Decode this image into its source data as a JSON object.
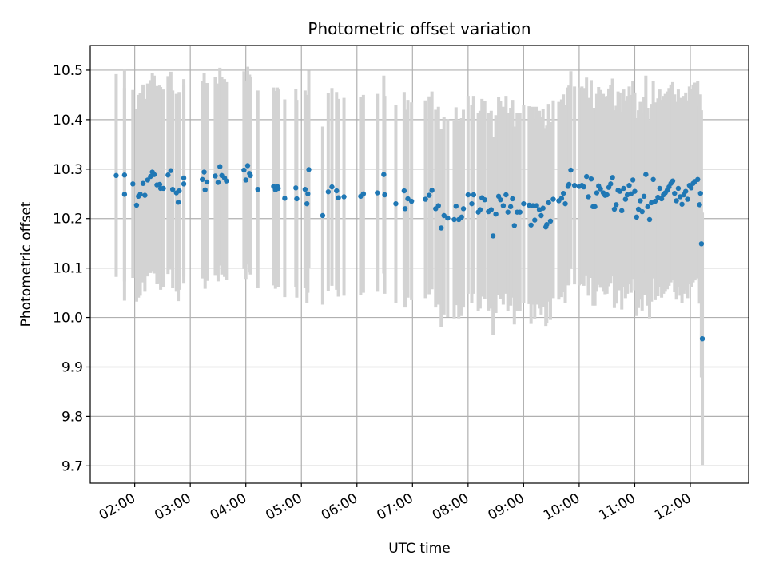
{
  "chart_data": {
    "type": "scatter",
    "title": "Photometric offset variation",
    "xlabel": "UTC time",
    "ylabel": "Photometric offset",
    "x_axis_type": "time",
    "xlim": [
      "01:12",
      "13:03"
    ],
    "ylim": [
      9.665,
      10.55
    ],
    "grid": true,
    "x_ticks": [
      "02:00",
      "03:00",
      "04:00",
      "05:00",
      "06:00",
      "07:00",
      "08:00",
      "09:00",
      "10:00",
      "11:00",
      "12:00"
    ],
    "y_ticks": [
      "9.7",
      "9.8",
      "9.9",
      "10.0",
      "10.1",
      "10.2",
      "10.3",
      "10.4",
      "10.5"
    ],
    "colors": {
      "points": "#1f77b4",
      "error_bars": "#d3d3d3",
      "grid": "#b0b0b0"
    },
    "points": [
      {
        "x": "01:40",
        "y": 10.287,
        "err": 0.205
      },
      {
        "x": "01:49",
        "y": 10.288,
        "err": 0.215
      },
      {
        "x": "01:49",
        "y": 10.249,
        "err": 0.215
      },
      {
        "x": "01:58",
        "y": 10.27,
        "err": 0.19
      },
      {
        "x": "02:02",
        "y": 10.227,
        "err": 0.195
      },
      {
        "x": "02:04",
        "y": 10.245,
        "err": 0.205
      },
      {
        "x": "02:06",
        "y": 10.249,
        "err": 0.205
      },
      {
        "x": "02:09",
        "y": 10.271,
        "err": 0.2
      },
      {
        "x": "02:11",
        "y": 10.247,
        "err": 0.195
      },
      {
        "x": "02:14",
        "y": 10.278,
        "err": 0.195
      },
      {
        "x": "02:17",
        "y": 10.285,
        "err": 0.195
      },
      {
        "x": "02:19",
        "y": 10.294,
        "err": 0.2
      },
      {
        "x": "02:21",
        "y": 10.289,
        "err": 0.2
      },
      {
        "x": "02:24",
        "y": 10.268,
        "err": 0.2
      },
      {
        "x": "02:27",
        "y": 10.269,
        "err": 0.2
      },
      {
        "x": "02:28",
        "y": 10.261,
        "err": 0.205
      },
      {
        "x": "02:31",
        "y": 10.261,
        "err": 0.2
      },
      {
        "x": "02:36",
        "y": 10.288,
        "err": 0.2
      },
      {
        "x": "02:39",
        "y": 10.297,
        "err": 0.2
      },
      {
        "x": "02:41",
        "y": 10.259,
        "err": 0.2
      },
      {
        "x": "02:45",
        "y": 10.252,
        "err": 0.2
      },
      {
        "x": "02:47",
        "y": 10.233,
        "err": 0.2
      },
      {
        "x": "02:48",
        "y": 10.256,
        "err": 0.2
      },
      {
        "x": "02:53",
        "y": 10.27,
        "err": 0.2
      },
      {
        "x": "02:53",
        "y": 10.282,
        "err": 0.2
      },
      {
        "x": "03:13",
        "y": 10.279,
        "err": 0.2
      },
      {
        "x": "03:15",
        "y": 10.294,
        "err": 0.2
      },
      {
        "x": "03:16",
        "y": 10.258,
        "err": 0.2
      },
      {
        "x": "03:18",
        "y": 10.274,
        "err": 0.2
      },
      {
        "x": "03:27",
        "y": 10.286,
        "err": 0.2
      },
      {
        "x": "03:30",
        "y": 10.273,
        "err": 0.2
      },
      {
        "x": "03:32",
        "y": 10.305,
        "err": 0.2
      },
      {
        "x": "03:34",
        "y": 10.287,
        "err": 0.2
      },
      {
        "x": "03:37",
        "y": 10.282,
        "err": 0.2
      },
      {
        "x": "03:39",
        "y": 10.276,
        "err": 0.2
      },
      {
        "x": "03:58",
        "y": 10.298,
        "err": 0.2
      },
      {
        "x": "04:00",
        "y": 10.278,
        "err": 0.2
      },
      {
        "x": "04:02",
        "y": 10.307,
        "err": 0.2
      },
      {
        "x": "04:04",
        "y": 10.291,
        "err": 0.2
      },
      {
        "x": "04:05",
        "y": 10.287,
        "err": 0.2
      },
      {
        "x": "04:13",
        "y": 10.259,
        "err": 0.2
      },
      {
        "x": "04:30",
        "y": 10.265,
        "err": 0.2
      },
      {
        "x": "04:32",
        "y": 10.258,
        "err": 0.2
      },
      {
        "x": "04:34",
        "y": 10.265,
        "err": 0.2
      },
      {
        "x": "04:35",
        "y": 10.261,
        "err": 0.2
      },
      {
        "x": "04:42",
        "y": 10.241,
        "err": 0.2
      },
      {
        "x": "04:54",
        "y": 10.262,
        "err": 0.2
      },
      {
        "x": "04:55",
        "y": 10.24,
        "err": 0.2
      },
      {
        "x": "05:04",
        "y": 10.259,
        "err": 0.2
      },
      {
        "x": "05:06",
        "y": 10.23,
        "err": 0.2
      },
      {
        "x": "05:07",
        "y": 10.25,
        "err": 0.2
      },
      {
        "x": "05:08",
        "y": 10.299,
        "err": 0.2
      },
      {
        "x": "05:23",
        "y": 10.206,
        "err": 0.18
      },
      {
        "x": "05:29",
        "y": 10.254,
        "err": 0.2
      },
      {
        "x": "05:33",
        "y": 10.264,
        "err": 0.2
      },
      {
        "x": "05:38",
        "y": 10.256,
        "err": 0.2
      },
      {
        "x": "05:40",
        "y": 10.242,
        "err": 0.2
      },
      {
        "x": "05:46",
        "y": 10.244,
        "err": 0.2
      },
      {
        "x": "06:04",
        "y": 10.245,
        "err": 0.2
      },
      {
        "x": "06:07",
        "y": 10.25,
        "err": 0.2
      },
      {
        "x": "06:22",
        "y": 10.252,
        "err": 0.2
      },
      {
        "x": "06:29",
        "y": 10.289,
        "err": 0.2
      },
      {
        "x": "06:30",
        "y": 10.248,
        "err": 0.2
      },
      {
        "x": "06:42",
        "y": 10.23,
        "err": 0.2
      },
      {
        "x": "06:51",
        "y": 10.256,
        "err": 0.2
      },
      {
        "x": "06:52",
        "y": 10.22,
        "err": 0.2
      },
      {
        "x": "06:55",
        "y": 10.24,
        "err": 0.2
      },
      {
        "x": "06:59",
        "y": 10.235,
        "err": 0.2
      },
      {
        "x": "07:14",
        "y": 10.239,
        "err": 0.2
      },
      {
        "x": "07:18",
        "y": 10.247,
        "err": 0.2
      },
      {
        "x": "07:21",
        "y": 10.257,
        "err": 0.2
      },
      {
        "x": "07:25",
        "y": 10.22,
        "err": 0.2
      },
      {
        "x": "07:28",
        "y": 10.226,
        "err": 0.2
      },
      {
        "x": "07:31",
        "y": 10.181,
        "err": 0.2
      },
      {
        "x": "07:34",
        "y": 10.206,
        "err": 0.2
      },
      {
        "x": "07:38",
        "y": 10.201,
        "err": 0.2
      },
      {
        "x": "07:45",
        "y": 10.198,
        "err": 0.2
      },
      {
        "x": "07:47",
        "y": 10.225,
        "err": 0.2
      },
      {
        "x": "07:50",
        "y": 10.198,
        "err": 0.2
      },
      {
        "x": "07:53",
        "y": 10.203,
        "err": 0.2
      },
      {
        "x": "07:55",
        "y": 10.22,
        "err": 0.2
      },
      {
        "x": "08:00",
        "y": 10.248,
        "err": 0.2
      },
      {
        "x": "08:04",
        "y": 10.23,
        "err": 0.2
      },
      {
        "x": "08:06",
        "y": 10.248,
        "err": 0.2
      },
      {
        "x": "08:11",
        "y": 10.213,
        "err": 0.2
      },
      {
        "x": "08:13",
        "y": 10.218,
        "err": 0.2
      },
      {
        "x": "08:15",
        "y": 10.242,
        "err": 0.2
      },
      {
        "x": "08:18",
        "y": 10.238,
        "err": 0.2
      },
      {
        "x": "08:22",
        "y": 10.214,
        "err": 0.2
      },
      {
        "x": "08:25",
        "y": 10.218,
        "err": 0.2
      },
      {
        "x": "08:27",
        "y": 10.165,
        "err": 0.2
      },
      {
        "x": "08:30",
        "y": 10.209,
        "err": 0.2
      },
      {
        "x": "08:33",
        "y": 10.245,
        "err": 0.2
      },
      {
        "x": "08:35",
        "y": 10.238,
        "err": 0.2
      },
      {
        "x": "08:38",
        "y": 10.226,
        "err": 0.2
      },
      {
        "x": "08:41",
        "y": 10.248,
        "err": 0.2
      },
      {
        "x": "08:43",
        "y": 10.213,
        "err": 0.2
      },
      {
        "x": "08:46",
        "y": 10.224,
        "err": 0.2
      },
      {
        "x": "08:48",
        "y": 10.24,
        "err": 0.2
      },
      {
        "x": "08:50",
        "y": 10.186,
        "err": 0.2
      },
      {
        "x": "08:53",
        "y": 10.213,
        "err": 0.2
      },
      {
        "x": "08:56",
        "y": 10.213,
        "err": 0.2
      },
      {
        "x": "09:00",
        "y": 10.23,
        "err": 0.2
      },
      {
        "x": "09:06",
        "y": 10.227,
        "err": 0.2
      },
      {
        "x": "09:08",
        "y": 10.187,
        "err": 0.2
      },
      {
        "x": "09:10",
        "y": 10.226,
        "err": 0.2
      },
      {
        "x": "09:12",
        "y": 10.197,
        "err": 0.2
      },
      {
        "x": "09:14",
        "y": 10.226,
        "err": 0.2
      },
      {
        "x": "09:17",
        "y": 10.218,
        "err": 0.2
      },
      {
        "x": "09:19",
        "y": 10.206,
        "err": 0.2
      },
      {
        "x": "09:21",
        "y": 10.221,
        "err": 0.2
      },
      {
        "x": "09:24",
        "y": 10.183,
        "err": 0.2
      },
      {
        "x": "09:25",
        "y": 10.188,
        "err": 0.2
      },
      {
        "x": "09:27",
        "y": 10.232,
        "err": 0.2
      },
      {
        "x": "09:29",
        "y": 10.195,
        "err": 0.2
      },
      {
        "x": "09:32",
        "y": 10.239,
        "err": 0.2
      },
      {
        "x": "09:38",
        "y": 10.236,
        "err": 0.2
      },
      {
        "x": "09:41",
        "y": 10.241,
        "err": 0.2
      },
      {
        "x": "09:43",
        "y": 10.251,
        "err": 0.2
      },
      {
        "x": "09:45",
        "y": 10.23,
        "err": 0.2
      },
      {
        "x": "09:48",
        "y": 10.265,
        "err": 0.2
      },
      {
        "x": "09:49",
        "y": 10.269,
        "err": 0.2
      },
      {
        "x": "09:51",
        "y": 10.298,
        "err": 0.2
      },
      {
        "x": "09:55",
        "y": 10.267,
        "err": 0.2
      },
      {
        "x": "10:00",
        "y": 10.265,
        "err": 0.2
      },
      {
        "x": "10:03",
        "y": 10.267,
        "err": 0.2
      },
      {
        "x": "10:05",
        "y": 10.264,
        "err": 0.2
      },
      {
        "x": "10:08",
        "y": 10.285,
        "err": 0.2
      },
      {
        "x": "10:10",
        "y": 10.244,
        "err": 0.2
      },
      {
        "x": "10:13",
        "y": 10.28,
        "err": 0.2
      },
      {
        "x": "10:15",
        "y": 10.224,
        "err": 0.2
      },
      {
        "x": "10:17",
        "y": 10.224,
        "err": 0.2
      },
      {
        "x": "10:19",
        "y": 10.252,
        "err": 0.2
      },
      {
        "x": "10:21",
        "y": 10.266,
        "err": 0.2
      },
      {
        "x": "10:23",
        "y": 10.26,
        "err": 0.2
      },
      {
        "x": "10:26",
        "y": 10.252,
        "err": 0.2
      },
      {
        "x": "10:28",
        "y": 10.247,
        "err": 0.2
      },
      {
        "x": "10:30",
        "y": 10.248,
        "err": 0.2
      },
      {
        "x": "10:32",
        "y": 10.263,
        "err": 0.2
      },
      {
        "x": "10:34",
        "y": 10.27,
        "err": 0.2
      },
      {
        "x": "10:36",
        "y": 10.283,
        "err": 0.2
      },
      {
        "x": "10:38",
        "y": 10.219,
        "err": 0.2
      },
      {
        "x": "10:40",
        "y": 10.228,
        "err": 0.2
      },
      {
        "x": "10:42",
        "y": 10.257,
        "err": 0.2
      },
      {
        "x": "10:44",
        "y": 10.255,
        "err": 0.2
      },
      {
        "x": "10:46",
        "y": 10.216,
        "err": 0.2
      },
      {
        "x": "10:48",
        "y": 10.261,
        "err": 0.2
      },
      {
        "x": "10:50",
        "y": 10.239,
        "err": 0.2
      },
      {
        "x": "10:52",
        "y": 10.248,
        "err": 0.2
      },
      {
        "x": "10:54",
        "y": 10.267,
        "err": 0.2
      },
      {
        "x": "10:56",
        "y": 10.25,
        "err": 0.2
      },
      {
        "x": "10:58",
        "y": 10.278,
        "err": 0.2
      },
      {
        "x": "11:00",
        "y": 10.255,
        "err": 0.2
      },
      {
        "x": "11:02",
        "y": 10.203,
        "err": 0.2
      },
      {
        "x": "11:04",
        "y": 10.219,
        "err": 0.2
      },
      {
        "x": "11:06",
        "y": 10.236,
        "err": 0.2
      },
      {
        "x": "11:08",
        "y": 10.214,
        "err": 0.2
      },
      {
        "x": "11:10",
        "y": 10.245,
        "err": 0.2
      },
      {
        "x": "11:12",
        "y": 10.289,
        "err": 0.2
      },
      {
        "x": "11:14",
        "y": 10.224,
        "err": 0.2
      },
      {
        "x": "11:16",
        "y": 10.198,
        "err": 0.2
      },
      {
        "x": "11:18",
        "y": 10.232,
        "err": 0.2
      },
      {
        "x": "11:20",
        "y": 10.279,
        "err": 0.2
      },
      {
        "x": "11:22",
        "y": 10.235,
        "err": 0.2
      },
      {
        "x": "11:25",
        "y": 10.243,
        "err": 0.2
      },
      {
        "x": "11:27",
        "y": 10.261,
        "err": 0.2
      },
      {
        "x": "11:29",
        "y": 10.24,
        "err": 0.2
      },
      {
        "x": "11:31",
        "y": 10.248,
        "err": 0.2
      },
      {
        "x": "11:33",
        "y": 10.252,
        "err": 0.2
      },
      {
        "x": "11:35",
        "y": 10.257,
        "err": 0.2
      },
      {
        "x": "11:37",
        "y": 10.264,
        "err": 0.2
      },
      {
        "x": "11:39",
        "y": 10.271,
        "err": 0.2
      },
      {
        "x": "11:41",
        "y": 10.276,
        "err": 0.2
      },
      {
        "x": "11:43",
        "y": 10.251,
        "err": 0.2
      },
      {
        "x": "11:45",
        "y": 10.236,
        "err": 0.2
      },
      {
        "x": "11:47",
        "y": 10.261,
        "err": 0.2
      },
      {
        "x": "11:49",
        "y": 10.244,
        "err": 0.2
      },
      {
        "x": "11:51",
        "y": 10.229,
        "err": 0.2
      },
      {
        "x": "11:53",
        "y": 10.248,
        "err": 0.2
      },
      {
        "x": "11:55",
        "y": 10.255,
        "err": 0.2
      },
      {
        "x": "11:57",
        "y": 10.239,
        "err": 0.2
      },
      {
        "x": "11:59",
        "y": 10.267,
        "err": 0.2
      },
      {
        "x": "12:01",
        "y": 10.262,
        "err": 0.2
      },
      {
        "x": "12:03",
        "y": 10.271,
        "err": 0.2
      },
      {
        "x": "12:05",
        "y": 10.275,
        "err": 0.2
      },
      {
        "x": "12:08",
        "y": 10.279,
        "err": 0.2
      },
      {
        "x": "12:10",
        "y": 10.228,
        "err": 0.2
      },
      {
        "x": "12:11",
        "y": 10.251,
        "err": 0.2
      },
      {
        "x": "12:12",
        "y": 10.149,
        "err": 0.27
      },
      {
        "x": "12:13",
        "y": 9.957,
        "err": 0.255
      }
    ]
  }
}
